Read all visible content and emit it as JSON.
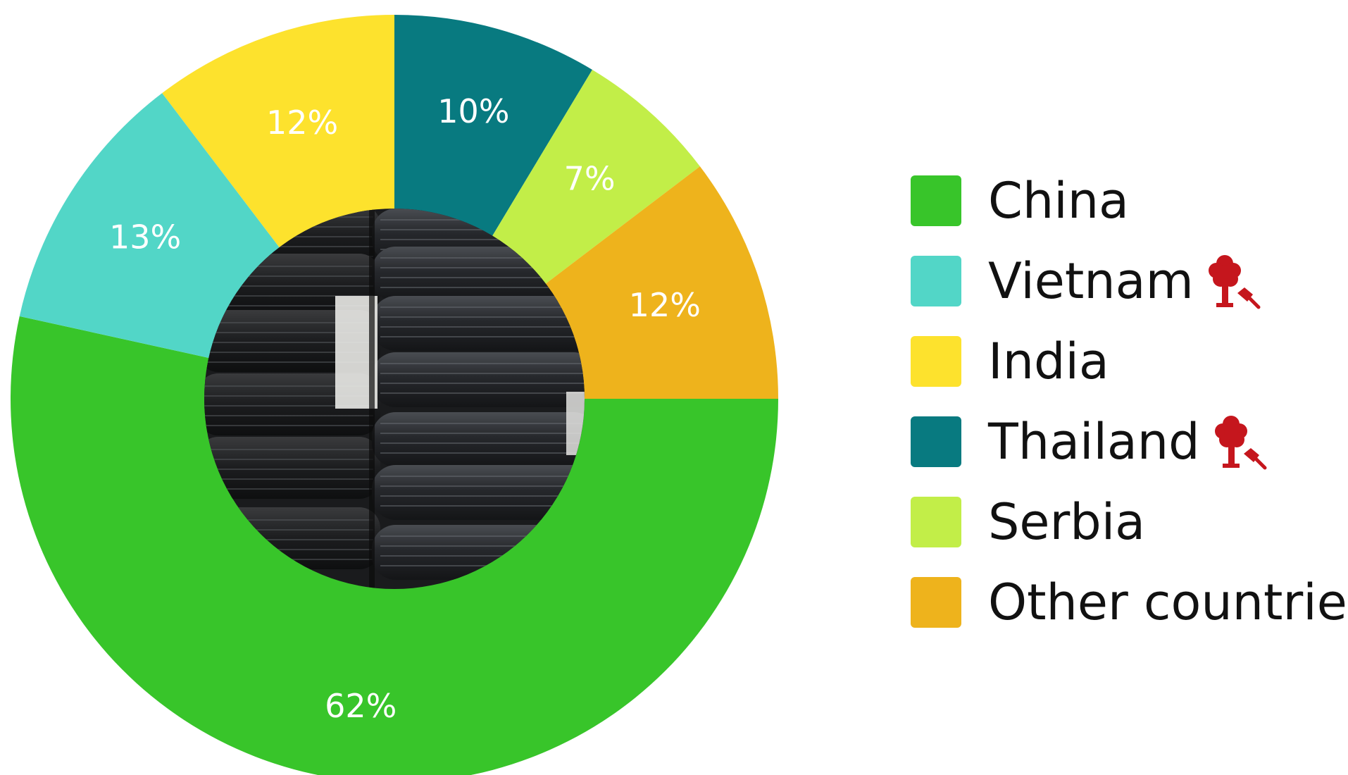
{
  "chart_data": {
    "type": "pie",
    "donut": true,
    "categories": [
      "China",
      "Vietnam",
      "India",
      "Thailand",
      "Serbia",
      "Other countries"
    ],
    "values": [
      62,
      13,
      12,
      10,
      7,
      12
    ],
    "labels": [
      "62%",
      "13%",
      "12%",
      "10%",
      "7%",
      "12%"
    ],
    "colors": [
      "#38c52a",
      "#52d6c7",
      "#fde22d",
      "#087a80",
      "#c2ee48",
      "#eeb31c"
    ],
    "legend_position": "right",
    "center_image": "stacked-tires-photo"
  },
  "legend": {
    "items": [
      {
        "label": "China",
        "color": "#38c52a",
        "icon": null
      },
      {
        "label": "Vietnam",
        "color": "#52d6c7",
        "icon": "tree-felling-axe-icon"
      },
      {
        "label": "India",
        "color": "#fde22d",
        "icon": null
      },
      {
        "label": "Thailand",
        "color": "#087a80",
        "icon": "tree-felling-axe-icon"
      },
      {
        "label": "Serbia",
        "color": "#c2ee48",
        "icon": null
      },
      {
        "label": "Other countries",
        "color": "#eeb31c",
        "icon": null
      }
    ]
  },
  "icon_color": "#c5161d"
}
